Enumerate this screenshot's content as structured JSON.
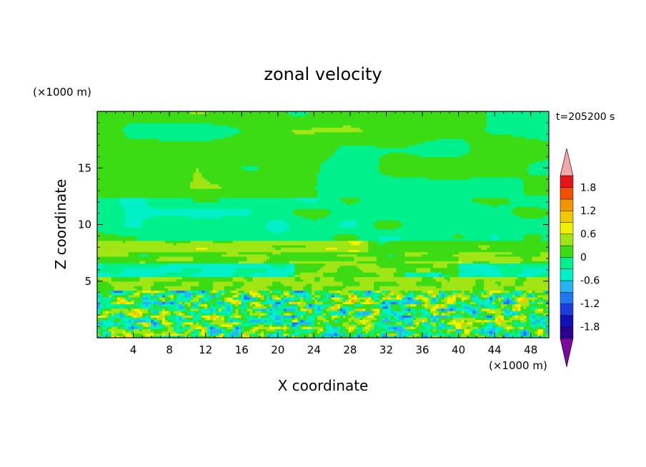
{
  "chart_data": {
    "type": "heatmap",
    "title": "zonal velocity",
    "xlabel": "X coordinate",
    "ylabel": "Z coordinate",
    "x_unit": "(×1000 m)",
    "y_unit": "(×1000 m)",
    "time_label": "t=205200 s",
    "xlim": [
      0,
      50
    ],
    "ylim": [
      0,
      20
    ],
    "x_ticks": [
      4,
      8,
      12,
      16,
      20,
      24,
      28,
      32,
      36,
      40,
      44,
      48
    ],
    "y_ticks": [
      5,
      10,
      15
    ],
    "colorbar": {
      "levels": [
        -2.1,
        -1.8,
        -1.5,
        -1.2,
        -0.9,
        -0.6,
        -0.3,
        0,
        0.3,
        0.6,
        0.9,
        1.2,
        1.5,
        1.8,
        2.1
      ],
      "tick_labels": [
        "1.8",
        "1.2",
        "0.6",
        "0",
        "-0.6",
        "-1.2",
        "-1.8"
      ],
      "colors": [
        "#7a0a9e",
        "#2b008c",
        "#1410b4",
        "#1e3cdc",
        "#1e78f0",
        "#28b4f0",
        "#00f0c8",
        "#00f08c",
        "#3cdc14",
        "#a0e614",
        "#f0f000",
        "#f0c800",
        "#f09600",
        "#f05000",
        "#e61414",
        "#f4a6a6"
      ],
      "extend": "both"
    },
    "field": {
      "description_levels_z_bands": [
        {
          "z": [
            0,
            4
          ],
          "value": "mixed small-scale, -0.9 to 0.9"
        },
        {
          "z": [
            4,
            5.5
          ],
          "value": 0.3
        },
        {
          "z": [
            5.5,
            6.5
          ],
          "value": -0.3
        },
        {
          "z": [
            6.5,
            7.5
          ],
          "value": 0.3
        },
        {
          "z": [
            7.5,
            8.5
          ],
          "value": 0.6
        },
        {
          "z": [
            8.5,
            12
          ],
          "value": -0.15
        },
        {
          "z": [
            12,
            20
          ],
          "value": 0.1
        }
      ]
    }
  }
}
